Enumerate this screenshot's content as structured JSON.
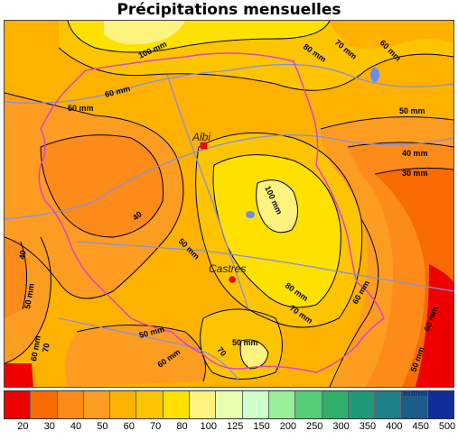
{
  "title": "Précipitations mensuelles",
  "map": {
    "cities": [
      {
        "name": "Albi"
      },
      {
        "name": "Castres"
      }
    ],
    "contour_labels": [
      "100 mm",
      "80 mm",
      "70 mm",
      "60 mm",
      "60 mm",
      "50 mm",
      "50 mm",
      "40 mm",
      "30 mm",
      "40",
      "100 mm",
      "50 mm",
      "40",
      "50 mm",
      "50 mm",
      "60 mm",
      "80 mm",
      "70 mm",
      "70",
      "60 mm",
      "50 mm",
      "70",
      "50 mm",
      "60 mm",
      "60 mm"
    ],
    "colors": {
      "background": "#fdb200",
      "outline_dept": "#e040d0",
      "rivers": "#8a8fe0",
      "city_marker": "#ff0000"
    }
  },
  "legend": {
    "unit": "millimètres",
    "ticks": [
      "20",
      "30",
      "40",
      "50",
      "60",
      "70",
      "80",
      "100",
      "125",
      "150",
      "200",
      "250",
      "300",
      "350",
      "400",
      "450",
      "500"
    ],
    "colors": [
      "#ee0000",
      "#f76b00",
      "#fd8b1a",
      "#fc9d21",
      "#fdb100",
      "#fdc400",
      "#ffe100",
      "#fff380",
      "#e8ffb2",
      "#ccffcc",
      "#99ee99",
      "#55cc77",
      "#2eb06a",
      "#1d9a7a",
      "#1d7f88",
      "#1b5d88",
      "#0e2f9a"
    ]
  }
}
